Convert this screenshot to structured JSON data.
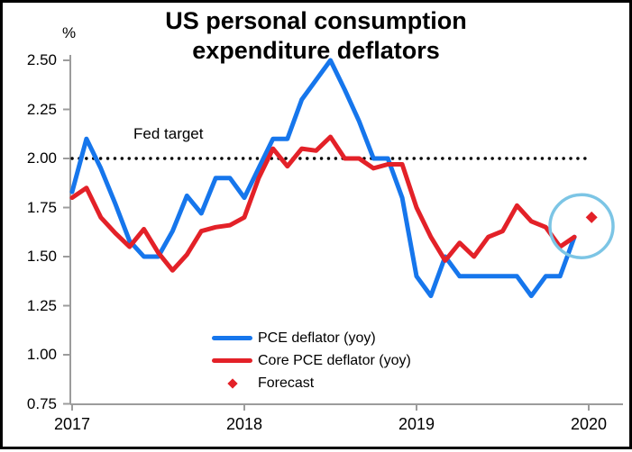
{
  "frame": {
    "border_color": "#000000",
    "background_color": "#FFFFFF"
  },
  "title": {
    "line1": "US personal consumption",
    "line2": "expenditure deflators"
  },
  "y_axis_unit_label": "%",
  "annotations": {
    "fed_target_label": "Fed target"
  },
  "legend": {
    "items": [
      {
        "label": "PCE deflator (yoy)",
        "type": "line",
        "color": "#1676EC"
      },
      {
        "label": "Core PCE deflator (yoy)",
        "type": "line",
        "color": "#E32128"
      },
      {
        "label": "Forecast",
        "type": "diamond",
        "color": "#E32128"
      }
    ]
  },
  "chart_data": {
    "type": "line",
    "title": "US personal consumption expenditure deflators",
    "ylabel": "%",
    "frequency": "monthly",
    "start_month": "2017-01",
    "end_month": "2019-12",
    "ylim": [
      0.75,
      2.5
    ],
    "grid": false,
    "legend_position": "lower center",
    "y_axis": {
      "unit": "%",
      "ticks": [
        2.5,
        2.25,
        2.0,
        1.75,
        1.5,
        1.25,
        1.0,
        0.75
      ]
    },
    "x_axis": {
      "tick_labels": [
        "2017",
        "2018",
        "2019",
        "2020"
      ],
      "tick_month_indices": [
        0,
        12,
        24,
        36
      ]
    },
    "fed_target": {
      "label": "Fed target",
      "value": 2.0,
      "style": "dotted",
      "color": "#000000"
    },
    "axis_color": "#9C9C9C",
    "series": [
      {
        "name": "PCE deflator (yoy)",
        "color": "#1676EC",
        "values": [
          1.83,
          2.1,
          1.95,
          1.77,
          1.58,
          1.5,
          1.5,
          1.63,
          1.81,
          1.72,
          1.9,
          1.9,
          1.8,
          1.95,
          2.1,
          2.1,
          2.3,
          2.4,
          2.5,
          2.35,
          2.19,
          2.0,
          2.0,
          1.8,
          1.4,
          1.3,
          1.5,
          1.4,
          1.4,
          1.4,
          1.4,
          1.4,
          1.3,
          1.4,
          1.4,
          1.6
        ]
      },
      {
        "name": "Core PCE deflator (yoy)",
        "color": "#E32128",
        "values": [
          1.8,
          1.85,
          1.7,
          1.62,
          1.55,
          1.64,
          1.52,
          1.43,
          1.51,
          1.63,
          1.65,
          1.66,
          1.7,
          1.9,
          2.05,
          1.96,
          2.05,
          2.04,
          2.11,
          2.0,
          2.0,
          1.95,
          1.97,
          1.97,
          1.75,
          1.6,
          1.48,
          1.57,
          1.5,
          1.6,
          1.63,
          1.76,
          1.68,
          1.65,
          1.55,
          1.6
        ]
      }
    ],
    "forecast": {
      "label": "Forecast",
      "month_index": 36.2,
      "value": 1.7,
      "color": "#E32128"
    },
    "highlight_circle": {
      "month_index": 35.5,
      "value": 1.655,
      "radius_px": 35,
      "color": "#7CC5E5"
    }
  }
}
